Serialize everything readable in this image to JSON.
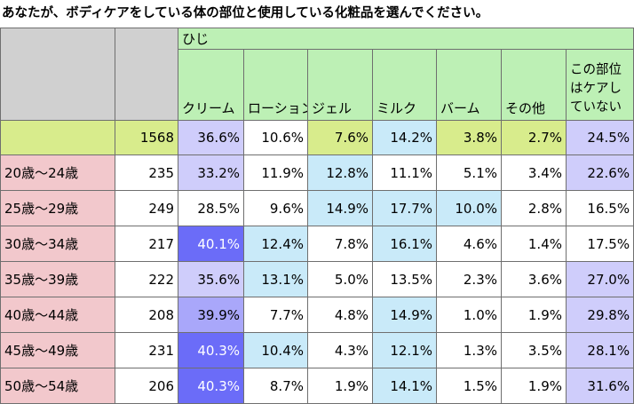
{
  "title": "あなたが、ボディケアをしている体の部位と使用している化粧品を選んでください。",
  "chart_data": {
    "type": "table",
    "group_label": "ひじ",
    "columns": [
      "クリーム",
      "ローション",
      "ジェル",
      "ミルク",
      "バーム",
      "その他",
      "この部位はケアしていない"
    ],
    "total": {
      "label": "",
      "n": "1568",
      "values": [
        "36.6%",
        "10.6%",
        "7.6%",
        "14.2%",
        "3.8%",
        "2.7%",
        "24.5%"
      ]
    },
    "rows": [
      {
        "label": "20歳～24歳",
        "n": "235",
        "values": [
          "33.2%",
          "11.9%",
          "12.8%",
          "11.1%",
          "5.1%",
          "3.4%",
          "22.6%"
        ]
      },
      {
        "label": "25歳～29歳",
        "n": "249",
        "values": [
          "28.5%",
          "9.6%",
          "14.9%",
          "17.7%",
          "10.0%",
          "2.8%",
          "16.5%"
        ]
      },
      {
        "label": "30歳～34歳",
        "n": "217",
        "values": [
          "40.1%",
          "12.4%",
          "7.8%",
          "16.1%",
          "4.6%",
          "1.4%",
          "17.5%"
        ]
      },
      {
        "label": "35歳～39歳",
        "n": "222",
        "values": [
          "35.6%",
          "13.1%",
          "5.0%",
          "13.5%",
          "2.3%",
          "3.6%",
          "27.0%"
        ]
      },
      {
        "label": "40歳～44歳",
        "n": "208",
        "values": [
          "39.9%",
          "7.7%",
          "4.8%",
          "14.9%",
          "1.0%",
          "1.9%",
          "29.8%"
        ]
      },
      {
        "label": "45歳～49歳",
        "n": "231",
        "values": [
          "40.3%",
          "10.4%",
          "4.3%",
          "12.1%",
          "1.3%",
          "3.5%",
          "28.1%"
        ]
      },
      {
        "label": "50歳～54歳",
        "n": "206",
        "values": [
          "40.3%",
          "8.7%",
          "1.9%",
          "14.1%",
          "1.5%",
          "1.9%",
          "31.6%"
        ]
      }
    ],
    "colors": {
      "header_green": "#bdf0b5",
      "total_row": "#d8ec8c",
      "age_label": "#f2c8cc",
      "highlight_blue": "#c9eaf9",
      "highlight_lavender": "#cfcdfb",
      "highlight_purple_mid": "#a9a7fa",
      "highlight_purple_dark": "#6b6cf8"
    },
    "cell_colors": {
      "total": [
        "lav",
        "white",
        "lime",
        "blue",
        "lime",
        "lime",
        "lav"
      ],
      "rows": [
        [
          "lav",
          "white",
          "blue",
          "white",
          "white",
          "white",
          "lav"
        ],
        [
          "white",
          "white",
          "blue",
          "blue",
          "blue",
          "white",
          "white"
        ],
        [
          "dpurple",
          "blue",
          "white",
          "blue",
          "white",
          "white",
          "white"
        ],
        [
          "lav",
          "blue",
          "white",
          "white",
          "white",
          "white",
          "lav"
        ],
        [
          "mpurple",
          "white",
          "white",
          "blue",
          "white",
          "white",
          "lav"
        ],
        [
          "dpurple",
          "blue",
          "white",
          "blue",
          "white",
          "white",
          "lav"
        ],
        [
          "dpurple",
          "white",
          "white",
          "blue",
          "white",
          "white",
          "lav"
        ]
      ]
    }
  }
}
